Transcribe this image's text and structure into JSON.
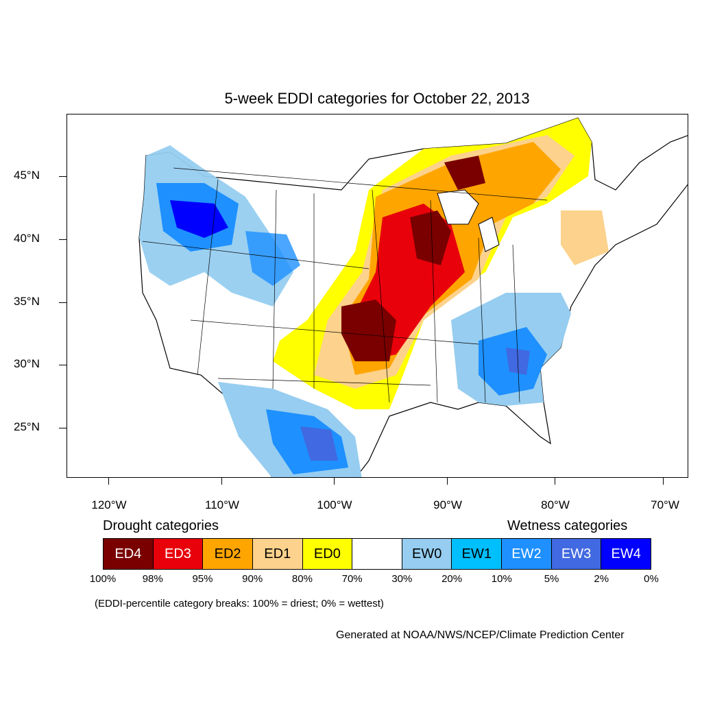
{
  "title": "5-week EDDI categories for October 22, 2013",
  "lat_labels": [
    "45°N",
    "40°N",
    "35°N",
    "30°N",
    "25°N"
  ],
  "lon_labels": [
    "120°W",
    "110°W",
    "100°W",
    "90°W",
    "80°W",
    "70°W"
  ],
  "legend": {
    "drought_heading": "Drought categories",
    "wetness_heading": "Wetness categories",
    "categories": [
      {
        "label": "ED4",
        "color": "#7a0000"
      },
      {
        "label": "ED3",
        "color": "#e8000b"
      },
      {
        "label": "ED2",
        "color": "#ffa500"
      },
      {
        "label": "ED1",
        "color": "#fcd28c"
      },
      {
        "label": "ED0",
        "color": "#ffff00"
      },
      {
        "label": "",
        "color": "#ffffff"
      },
      {
        "label": "EW0",
        "color": "#96cdf0"
      },
      {
        "label": "EW1",
        "color": "#00bfff"
      },
      {
        "label": "EW2",
        "color": "#1e90ff"
      },
      {
        "label": "EW3",
        "color": "#4169e1"
      },
      {
        "label": "EW4",
        "color": "#0000ff"
      }
    ],
    "breaks": [
      "100%",
      "98%",
      "95%",
      "90%",
      "80%",
      "70%",
      "30%",
      "20%",
      "10%",
      "5%",
      "2%",
      "0%"
    ]
  },
  "note": "(EDDI-percentile category breaks: 100% = driest; 0% = wettest)",
  "credit": "Generated at NOAA/NWS/NCEP/Climate Prediction Center"
}
